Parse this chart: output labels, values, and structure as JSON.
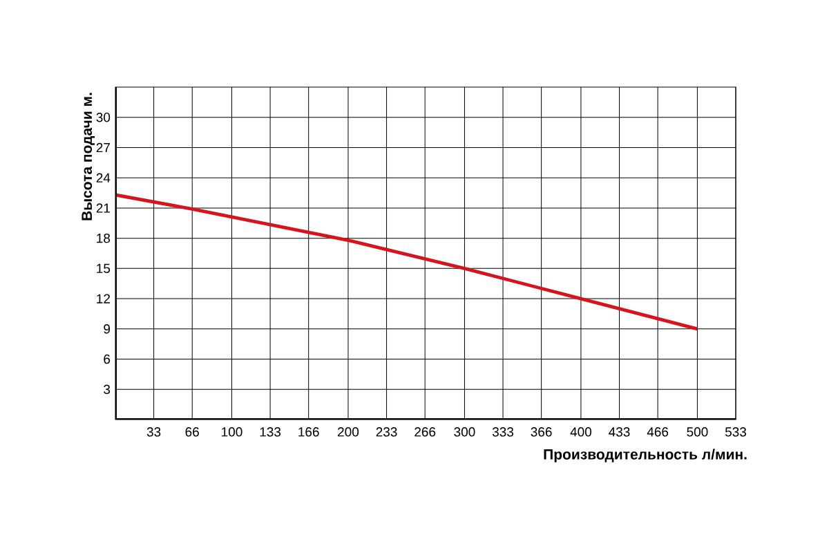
{
  "chart_data": {
    "type": "line",
    "xlabel": "Производительность л/мин.",
    "ylabel": "Высота подачи м.",
    "x": [
      0,
      66,
      200,
      300,
      400,
      500
    ],
    "series": [
      {
        "color": "#d7141e",
        "values": [
          22.3,
          20.9,
          17.8,
          15,
          12,
          9
        ]
      }
    ],
    "xlim": [
      0,
      533
    ],
    "ylim": [
      0,
      33
    ],
    "xticks": [
      33,
      66,
      100,
      133,
      166,
      200,
      233,
      266,
      300,
      333,
      366,
      400,
      433,
      466,
      500,
      533
    ],
    "yticks": [
      3,
      6,
      9,
      12,
      15,
      18,
      21,
      24,
      27,
      30
    ],
    "grid": true,
    "marker": "none",
    "line_style": "solid"
  }
}
